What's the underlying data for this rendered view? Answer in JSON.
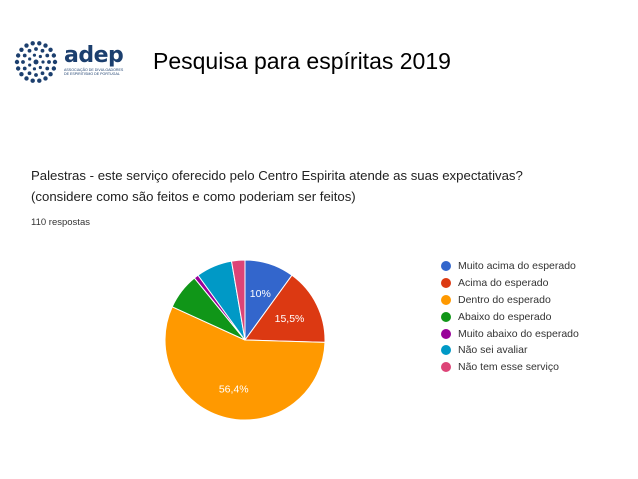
{
  "slide_title": "Pesquisa para espíritas  2019",
  "logo": {
    "word": "adep",
    "subtitle": "Associação de Divulgadores de Espiritismo de Portugal"
  },
  "question": {
    "line1": "Palestras - este serviço oferecido pelo Centro Espirita atende as suas expectativas?",
    "line2": "(considere como são feitos e como poderiam ser feitos)"
  },
  "responses": "110 respostas",
  "colors": {
    "text": "#222222",
    "logo": "#1c3f6e"
  },
  "chart_data": {
    "type": "pie",
    "title": "",
    "legend_placement": "right",
    "categories": [
      "Muito acima do esperado",
      "Acima do esperado",
      "Dentro do esperado",
      "Abaixo do esperado",
      "Muito abaixo do esperado",
      "Não sei avaliar",
      "Não tem esse serviço"
    ],
    "values": [
      10,
      15.5,
      56.4,
      7.3,
      0.9,
      7.3,
      2.7
    ],
    "data_labels": [
      "10%",
      "15,5%",
      "56,4%",
      "",
      "",
      "",
      ""
    ],
    "colors": [
      "#3366cc",
      "#dc3912",
      "#ff9900",
      "#109618",
      "#990099",
      "#0099c6",
      "#dd4477"
    ],
    "start_angle_deg": 90,
    "direction": "clockwise"
  }
}
